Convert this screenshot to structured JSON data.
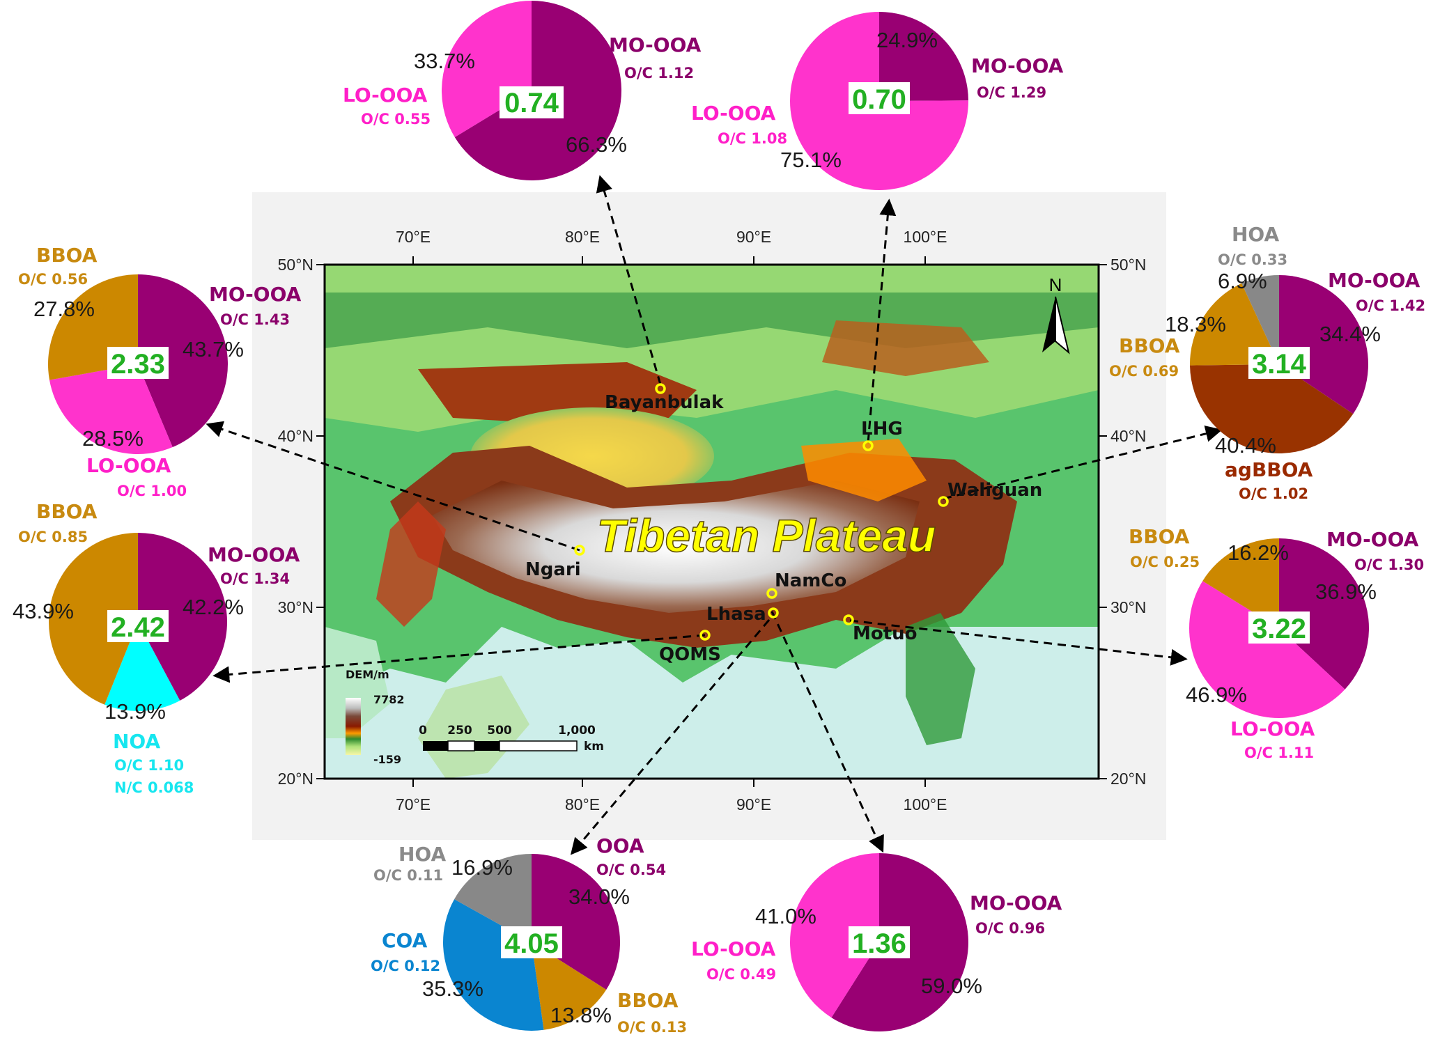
{
  "map": {
    "title": "Tibetan Plateau",
    "north_arrow": "N",
    "lon_labels": [
      "70°E",
      "80°E",
      "90°E",
      "100°E"
    ],
    "lat_labels": [
      "50°N",
      "40°N",
      "30°N",
      "20°N"
    ],
    "legend": {
      "title": "DEM/m",
      "max": "7782",
      "min": "-159"
    },
    "scale": {
      "ticks": [
        "0",
        "250",
        "500",
        "1,000"
      ],
      "unit": "km"
    },
    "colors": {
      "frame_bg": "#f2f2f2",
      "sea": "#cdeeea",
      "snow": "#f4f4f4",
      "high": "#8b3a1a",
      "mid": "#ff9a00",
      "low": "#52c36b"
    }
  },
  "sites": [
    {
      "name": "Bayanbulak"
    },
    {
      "name": "LHG"
    },
    {
      "name": "Waliguan"
    },
    {
      "name": "Ngari"
    },
    {
      "name": "NamCo"
    },
    {
      "name": "Lhasa"
    },
    {
      "name": "QOMS"
    },
    {
      "name": "Motuo"
    }
  ],
  "component_colors": {
    "MO-OOA": "#990073",
    "LO-OOA": "#ff33cc",
    "BBOA": "#cc8800",
    "HOA": "#888888",
    "agBBOA": "#993300",
    "NOA": "#00ffff",
    "COA": "#0a85d0",
    "OOA": "#990073"
  },
  "label_colors": {
    "MO-OOA": "#8b006a",
    "LO-OOA": "#ff1fc8",
    "BBOA": "#c88a10",
    "HOA": "#8a8a8a",
    "agBBOA": "#9a2a00",
    "NOA": "#17e6ef",
    "COA": "#0a85d0",
    "OOA": "#8b006a"
  },
  "chart_data": [
    {
      "type": "pie",
      "site": "Bayanbulak",
      "center_value": "0.74",
      "slices": [
        {
          "label": "MO-OOA",
          "oc": "O/C 1.12",
          "value": 66.3,
          "pct": "66.3%"
        },
        {
          "label": "LO-OOA",
          "oc": "O/C 0.55",
          "value": 33.7,
          "pct": "33.7%"
        }
      ]
    },
    {
      "type": "pie",
      "site": "LHG",
      "center_value": "0.70",
      "slices": [
        {
          "label": "MO-OOA",
          "oc": "O/C 1.29",
          "value": 24.9,
          "pct": "24.9%"
        },
        {
          "label": "LO-OOA",
          "oc": "O/C 1.08",
          "value": 75.1,
          "pct": "75.1%"
        }
      ]
    },
    {
      "type": "pie",
      "site": "Ngari",
      "center_value": "2.33",
      "slices": [
        {
          "label": "MO-OOA",
          "oc": "O/C 1.43",
          "value": 43.7,
          "pct": "43.7%"
        },
        {
          "label": "LO-OOA",
          "oc": "O/C 1.00",
          "value": 28.5,
          "pct": "28.5%"
        },
        {
          "label": "BBOA",
          "oc": "O/C 0.56",
          "value": 27.8,
          "pct": "27.8%"
        }
      ]
    },
    {
      "type": "pie",
      "site": "QOMS",
      "center_value": "2.42",
      "slices": [
        {
          "label": "MO-OOA",
          "oc": "O/C 1.34",
          "value": 42.2,
          "pct": "42.2%"
        },
        {
          "label": "NOA",
          "oc": "O/C 1.10",
          "oc2": "N/C 0.068",
          "value": 13.9,
          "pct": "13.9%"
        },
        {
          "label": "BBOA",
          "oc": "O/C 0.85",
          "value": 43.9,
          "pct": "43.9%"
        }
      ]
    },
    {
      "type": "pie",
      "site": "Waliguan",
      "center_value": "3.14",
      "slices": [
        {
          "label": "MO-OOA",
          "oc": "O/C 1.42",
          "value": 34.4,
          "pct": "34.4%"
        },
        {
          "label": "agBBOA",
          "oc": "O/C 1.02",
          "value": 40.4,
          "pct": "40.4%"
        },
        {
          "label": "BBOA",
          "oc": "O/C 0.69",
          "value": 18.3,
          "pct": "18.3%"
        },
        {
          "label": "HOA",
          "oc": "O/C 0.33",
          "value": 6.9,
          "pct": "6.9%"
        }
      ]
    },
    {
      "type": "pie",
      "site": "Motuo",
      "center_value": "3.22",
      "slices": [
        {
          "label": "MO-OOA",
          "oc": "O/C 1.30",
          "value": 36.9,
          "pct": "36.9%"
        },
        {
          "label": "LO-OOA",
          "oc": "O/C 1.11",
          "value": 46.9,
          "pct": "46.9%"
        },
        {
          "label": "BBOA",
          "oc": "O/C 0.25",
          "value": 16.2,
          "pct": "16.2%"
        }
      ]
    },
    {
      "type": "pie",
      "site": "Lhasa",
      "center_value": "4.05",
      "slices": [
        {
          "label": "OOA",
          "oc": "O/C 0.54",
          "value": 34.0,
          "pct": "34.0%"
        },
        {
          "label": "BBOA",
          "oc": "O/C 0.13",
          "value": 13.8,
          "pct": "13.8%"
        },
        {
          "label": "COA",
          "oc": "O/C 0.12",
          "value": 35.3,
          "pct": "35.3%"
        },
        {
          "label": "HOA",
          "oc": "O/C 0.11",
          "value": 16.9,
          "pct": "16.9%"
        }
      ]
    },
    {
      "type": "pie",
      "site": "NamCo",
      "center_value": "1.36",
      "slices": [
        {
          "label": "MO-OOA",
          "oc": "O/C 0.96",
          "value": 59.0,
          "pct": "59.0%"
        },
        {
          "label": "LO-OOA",
          "oc": "O/C 0.49",
          "value": 41.0,
          "pct": "41.0%"
        }
      ]
    }
  ]
}
